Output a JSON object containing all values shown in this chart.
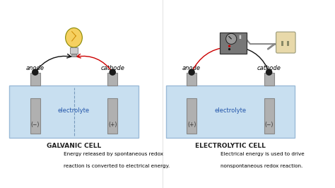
{
  "bg_color": "#ffffff",
  "fig_width": 4.74,
  "fig_height": 2.66,
  "dpi": 100,
  "left_title": "GALVANIC CELL",
  "right_title": "ELECTROLYTIC CELL",
  "left_desc1": "Energy released by spontaneous redox",
  "left_desc2": "reaction is converted to electrical energy.",
  "right_desc1": "Electrical energy is used to drive",
  "right_desc2": "nonspontaneous redox reaction.",
  "electrolyte_color": "#c8dff0",
  "electrolyte_border": "#9bbbd8",
  "electrode_color": "#b0b0b0",
  "electrode_border": "#888888",
  "anode_label": "anode",
  "cathode_label": "cathode",
  "electrolyte_label": "electrolyte",
  "left_anode_sign": "(−)",
  "left_cathode_sign": "(+)",
  "right_anode_sign": "(+)",
  "right_cathode_sign": "(−)",
  "arrow_color": "#111111",
  "wire_red": "#cc0000",
  "wire_black": "#111111",
  "bulb_color": "#f5d060",
  "device_color": "#777777",
  "outlet_color": "#e8d9aa",
  "node_color": "#1a1a1a",
  "font_size_label": 6.0,
  "font_size_sign": 5.5,
  "font_size_title": 6.5,
  "font_size_desc": 5.2,
  "font_size_elec": 6.0
}
